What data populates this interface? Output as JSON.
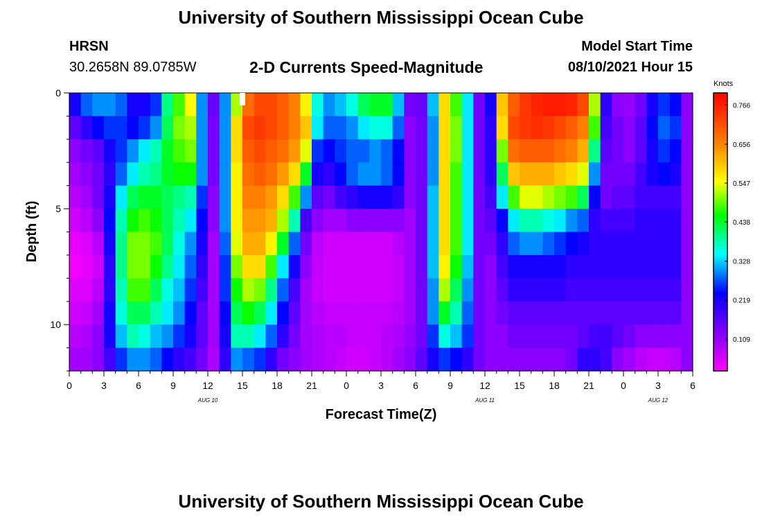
{
  "header": {
    "title": "University of Southern Mississippi Ocean Cube",
    "station": "HRSN",
    "coords": "30.2658N  89.0785W",
    "subtitle": "2-D Currents Speed-Magnitude",
    "model_start_label": "Model Start Time",
    "model_start_value": "08/10/2021 Hour 15"
  },
  "footer": {
    "title": "University of Southern Mississippi Ocean Cube"
  },
  "chart_data": {
    "type": "heatmap",
    "xlabel": "Forecast Time(Z)",
    "ylabel": "Depth (ft)",
    "x_ticks": [
      "0",
      "3",
      "6",
      "9",
      "12",
      "15",
      "18",
      "21",
      "0",
      "3",
      "6",
      "9",
      "12",
      "15",
      "18",
      "21",
      "0",
      "3",
      "6"
    ],
    "day_labels": [
      {
        "text": "AUG  10",
        "hour": 12
      },
      {
        "text": "AUG  11",
        "hour": 36
      },
      {
        "text": "AUG  12",
        "hour": 51
      }
    ],
    "y_ticks": [
      "0",
      "5",
      "10"
    ],
    "xlim": [
      0,
      54
    ],
    "ylim": [
      0,
      12
    ],
    "colorbar": {
      "title": "Knots",
      "ticks": [
        "0.766",
        "0.656",
        "0.547",
        "0.438",
        "0.328",
        "0.219",
        "0.109"
      ],
      "tick_values": [
        0.766,
        0.656,
        0.547,
        0.438,
        0.328,
        0.219,
        0.109
      ],
      "range": [
        0.02,
        0.8
      ]
    },
    "depths_ft": [
      0.5,
      1.5,
      2.5,
      3.5,
      4.5,
      5.5,
      6.5,
      7.5,
      8.5,
      9.5,
      10.5,
      11.5
    ],
    "hours": [
      0,
      1,
      2,
      3,
      4,
      5,
      6,
      7,
      8,
      9,
      10,
      11,
      12,
      13,
      14,
      15,
      16,
      17,
      18,
      19,
      20,
      21,
      22,
      23,
      24,
      25,
      26,
      27,
      28,
      29,
      30,
      31,
      32,
      33,
      34,
      35,
      36,
      37,
      38,
      39,
      40,
      41,
      42,
      43,
      44,
      45,
      46,
      47,
      48,
      49,
      50,
      51,
      52,
      53
    ],
    "speed_knots": [
      [
        0.22,
        0.28,
        0.3,
        0.3,
        0.28,
        0.22,
        0.22,
        0.26,
        0.4,
        0.48,
        0.55,
        0.3,
        0.15,
        0.3,
        0.52,
        0.68,
        0.72,
        0.72,
        0.7,
        0.66,
        0.56,
        0.36,
        0.3,
        0.32,
        0.36,
        0.42,
        0.44,
        0.44,
        0.32,
        0.14,
        0.15,
        0.32,
        0.58,
        0.48,
        0.34,
        0.14,
        0.22,
        0.6,
        0.7,
        0.74,
        0.76,
        0.77,
        0.77,
        0.76,
        0.72,
        0.52,
        0.2,
        0.12,
        0.11,
        0.14,
        0.22,
        0.26,
        0.24,
        0.12
      ],
      [
        0.16,
        0.2,
        0.24,
        0.26,
        0.26,
        0.24,
        0.26,
        0.3,
        0.42,
        0.5,
        0.52,
        0.3,
        0.14,
        0.3,
        0.58,
        0.72,
        0.74,
        0.72,
        0.7,
        0.66,
        0.6,
        0.34,
        0.28,
        0.28,
        0.3,
        0.34,
        0.36,
        0.36,
        0.28,
        0.12,
        0.14,
        0.3,
        0.58,
        0.5,
        0.34,
        0.14,
        0.2,
        0.58,
        0.72,
        0.74,
        0.75,
        0.74,
        0.72,
        0.7,
        0.66,
        0.48,
        0.18,
        0.14,
        0.12,
        0.16,
        0.24,
        0.28,
        0.26,
        0.12
      ],
      [
        0.12,
        0.14,
        0.16,
        0.22,
        0.26,
        0.3,
        0.34,
        0.38,
        0.44,
        0.48,
        0.5,
        0.3,
        0.14,
        0.3,
        0.58,
        0.7,
        0.72,
        0.7,
        0.68,
        0.64,
        0.54,
        0.26,
        0.24,
        0.26,
        0.28,
        0.28,
        0.3,
        0.28,
        0.24,
        0.12,
        0.14,
        0.3,
        0.58,
        0.5,
        0.34,
        0.14,
        0.2,
        0.5,
        0.68,
        0.7,
        0.7,
        0.7,
        0.68,
        0.66,
        0.62,
        0.4,
        0.16,
        0.14,
        0.12,
        0.16,
        0.22,
        0.26,
        0.24,
        0.12
      ],
      [
        0.1,
        0.12,
        0.14,
        0.2,
        0.28,
        0.34,
        0.38,
        0.4,
        0.44,
        0.46,
        0.46,
        0.3,
        0.14,
        0.3,
        0.56,
        0.68,
        0.7,
        0.68,
        0.64,
        0.58,
        0.44,
        0.22,
        0.2,
        0.24,
        0.28,
        0.3,
        0.3,
        0.28,
        0.24,
        0.12,
        0.14,
        0.3,
        0.58,
        0.48,
        0.34,
        0.14,
        0.2,
        0.42,
        0.6,
        0.62,
        0.62,
        0.62,
        0.6,
        0.58,
        0.54,
        0.3,
        0.14,
        0.14,
        0.14,
        0.18,
        0.22,
        0.24,
        0.22,
        0.12
      ],
      [
        0.08,
        0.1,
        0.14,
        0.22,
        0.34,
        0.42,
        0.44,
        0.44,
        0.42,
        0.4,
        0.38,
        0.26,
        0.12,
        0.3,
        0.56,
        0.66,
        0.66,
        0.64,
        0.58,
        0.48,
        0.3,
        0.16,
        0.14,
        0.18,
        0.2,
        0.22,
        0.22,
        0.22,
        0.2,
        0.12,
        0.14,
        0.32,
        0.58,
        0.48,
        0.34,
        0.14,
        0.18,
        0.34,
        0.48,
        0.54,
        0.54,
        0.52,
        0.5,
        0.48,
        0.42,
        0.24,
        0.14,
        0.16,
        0.16,
        0.18,
        0.18,
        0.18,
        0.18,
        0.12
      ],
      [
        0.06,
        0.08,
        0.12,
        0.24,
        0.38,
        0.46,
        0.48,
        0.46,
        0.42,
        0.38,
        0.34,
        0.24,
        0.12,
        0.3,
        0.56,
        0.64,
        0.64,
        0.62,
        0.52,
        0.38,
        0.18,
        0.12,
        0.1,
        0.1,
        0.12,
        0.12,
        0.12,
        0.12,
        0.12,
        0.1,
        0.14,
        0.32,
        0.58,
        0.48,
        0.34,
        0.14,
        0.16,
        0.24,
        0.34,
        0.38,
        0.38,
        0.36,
        0.34,
        0.3,
        0.28,
        0.2,
        0.18,
        0.18,
        0.18,
        0.2,
        0.2,
        0.2,
        0.2,
        0.12
      ],
      [
        0.04,
        0.05,
        0.08,
        0.22,
        0.4,
        0.5,
        0.5,
        0.48,
        0.42,
        0.36,
        0.3,
        0.22,
        0.1,
        0.28,
        0.54,
        0.62,
        0.62,
        0.56,
        0.44,
        0.28,
        0.14,
        0.08,
        0.06,
        0.06,
        0.06,
        0.06,
        0.06,
        0.06,
        0.08,
        0.1,
        0.14,
        0.32,
        0.58,
        0.48,
        0.34,
        0.14,
        0.14,
        0.2,
        0.28,
        0.3,
        0.3,
        0.28,
        0.26,
        0.24,
        0.22,
        0.2,
        0.2,
        0.2,
        0.2,
        0.2,
        0.2,
        0.2,
        0.2,
        0.12
      ],
      [
        0.03,
        0.04,
        0.06,
        0.2,
        0.4,
        0.5,
        0.5,
        0.46,
        0.4,
        0.34,
        0.28,
        0.2,
        0.1,
        0.26,
        0.5,
        0.58,
        0.58,
        0.48,
        0.34,
        0.22,
        0.12,
        0.07,
        0.06,
        0.06,
        0.06,
        0.06,
        0.06,
        0.06,
        0.07,
        0.1,
        0.14,
        0.32,
        0.56,
        0.46,
        0.32,
        0.14,
        0.12,
        0.18,
        0.22,
        0.22,
        0.22,
        0.22,
        0.22,
        0.2,
        0.2,
        0.2,
        0.2,
        0.2,
        0.2,
        0.2,
        0.2,
        0.2,
        0.2,
        0.12
      ],
      [
        0.05,
        0.05,
        0.08,
        0.2,
        0.38,
        0.48,
        0.48,
        0.42,
        0.36,
        0.32,
        0.26,
        0.18,
        0.1,
        0.26,
        0.46,
        0.52,
        0.5,
        0.4,
        0.28,
        0.18,
        0.1,
        0.07,
        0.06,
        0.06,
        0.06,
        0.06,
        0.06,
        0.06,
        0.07,
        0.1,
        0.14,
        0.3,
        0.52,
        0.42,
        0.3,
        0.14,
        0.12,
        0.16,
        0.2,
        0.2,
        0.2,
        0.2,
        0.2,
        0.18,
        0.18,
        0.18,
        0.18,
        0.18,
        0.18,
        0.18,
        0.18,
        0.18,
        0.18,
        0.12
      ],
      [
        0.06,
        0.07,
        0.1,
        0.22,
        0.36,
        0.42,
        0.42,
        0.38,
        0.34,
        0.3,
        0.24,
        0.16,
        0.1,
        0.24,
        0.42,
        0.46,
        0.42,
        0.34,
        0.24,
        0.16,
        0.1,
        0.08,
        0.07,
        0.07,
        0.07,
        0.07,
        0.07,
        0.07,
        0.08,
        0.1,
        0.14,
        0.3,
        0.44,
        0.38,
        0.28,
        0.14,
        0.12,
        0.14,
        0.16,
        0.16,
        0.16,
        0.16,
        0.16,
        0.16,
        0.16,
        0.16,
        0.16,
        0.16,
        0.16,
        0.16,
        0.16,
        0.16,
        0.16,
        0.12
      ],
      [
        0.08,
        0.09,
        0.12,
        0.22,
        0.32,
        0.38,
        0.36,
        0.32,
        0.3,
        0.26,
        0.22,
        0.16,
        0.1,
        0.22,
        0.38,
        0.38,
        0.34,
        0.28,
        0.2,
        0.14,
        0.1,
        0.09,
        0.08,
        0.08,
        0.07,
        0.07,
        0.07,
        0.08,
        0.09,
        0.11,
        0.14,
        0.26,
        0.36,
        0.32,
        0.26,
        0.14,
        0.12,
        0.12,
        0.14,
        0.14,
        0.14,
        0.14,
        0.14,
        0.14,
        0.16,
        0.18,
        0.18,
        0.16,
        0.14,
        0.12,
        0.12,
        0.12,
        0.12,
        0.12
      ],
      [
        0.1,
        0.1,
        0.12,
        0.18,
        0.26,
        0.3,
        0.3,
        0.28,
        0.24,
        0.2,
        0.18,
        0.14,
        0.09,
        0.2,
        0.3,
        0.28,
        0.26,
        0.2,
        0.14,
        0.12,
        0.1,
        0.09,
        0.08,
        0.07,
        0.06,
        0.06,
        0.07,
        0.08,
        0.1,
        0.12,
        0.16,
        0.22,
        0.26,
        0.24,
        0.2,
        0.14,
        0.12,
        0.12,
        0.12,
        0.12,
        0.12,
        0.12,
        0.12,
        0.14,
        0.2,
        0.2,
        0.18,
        0.12,
        0.1,
        0.08,
        0.07,
        0.07,
        0.08,
        0.12
      ]
    ],
    "grid": false,
    "legend": "colorbar-right"
  }
}
